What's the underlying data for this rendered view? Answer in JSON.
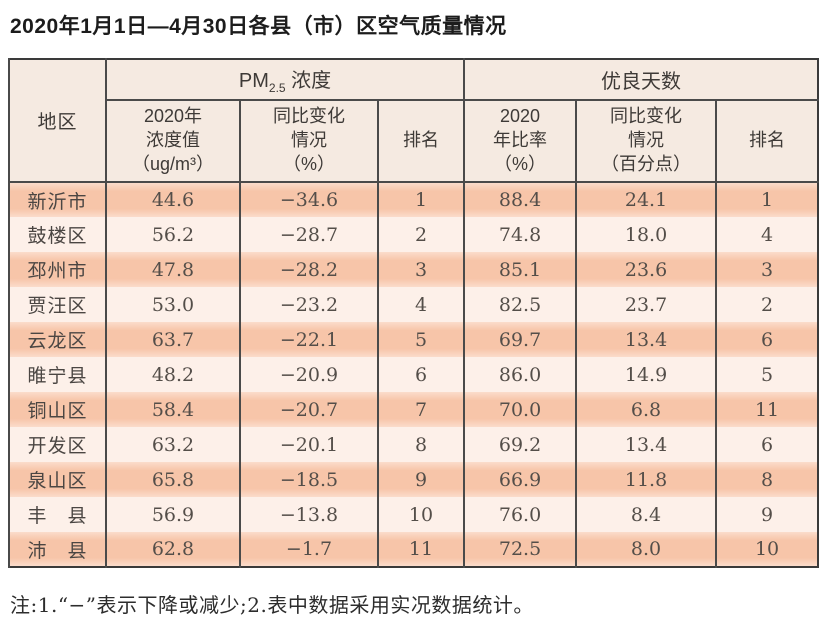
{
  "page": {
    "title": "2020年1月1日—4月30日各县（市）区空气质量情况",
    "note": "注:1.“−”表示下降或减少;2.表中数据采用实况数据统计。"
  },
  "colors": {
    "row_salmon": "#f7c5a9",
    "row_light": "#fdf0e9",
    "header_bg": "#f5eae1",
    "border_dark": "#4a4a4a"
  },
  "chart_data": {
    "type": "table",
    "title": "2020年1月1日—4月30日各县（市）区空气质量情况",
    "header": {
      "region": "地区",
      "group_pm": {
        "prefix": "PM",
        "sub": "2.5",
        "suffix": " 浓度"
      },
      "group_good": "优良天数",
      "sub_columns": [
        "2020年\n浓度值\n（ug/m³）",
        "同比变化\n情况\n（%）",
        "排名",
        "2020\n年比率\n（%）",
        "同比变化\n情况\n（百分点）",
        "排名"
      ]
    },
    "rows": [
      {
        "region": "新沂市",
        "pm_value": "44.6",
        "pm_change": "−34.6",
        "pm_rank": "1",
        "good_ratio": "88.4",
        "good_change": "24.1",
        "good_rank": "1"
      },
      {
        "region": "鼓楼区",
        "pm_value": "56.2",
        "pm_change": "−28.7",
        "pm_rank": "2",
        "good_ratio": "74.8",
        "good_change": "18.0",
        "good_rank": "4"
      },
      {
        "region": "邳州市",
        "pm_value": "47.8",
        "pm_change": "−28.2",
        "pm_rank": "3",
        "good_ratio": "85.1",
        "good_change": "23.6",
        "good_rank": "3"
      },
      {
        "region": "贾汪区",
        "pm_value": "53.0",
        "pm_change": "−23.2",
        "pm_rank": "4",
        "good_ratio": "82.5",
        "good_change": "23.7",
        "good_rank": "2"
      },
      {
        "region": "云龙区",
        "pm_value": "63.7",
        "pm_change": "−22.1",
        "pm_rank": "5",
        "good_ratio": "69.7",
        "good_change": "13.4",
        "good_rank": "6"
      },
      {
        "region": "睢宁县",
        "pm_value": "48.2",
        "pm_change": "−20.9",
        "pm_rank": "6",
        "good_ratio": "86.0",
        "good_change": "14.9",
        "good_rank": "5"
      },
      {
        "region": "铜山区",
        "pm_value": "58.4",
        "pm_change": "−20.7",
        "pm_rank": "7",
        "good_ratio": "70.0",
        "good_change": "6.8",
        "good_rank": "11"
      },
      {
        "region": "开发区",
        "pm_value": "63.2",
        "pm_change": "−20.1",
        "pm_rank": "8",
        "good_ratio": "69.2",
        "good_change": "13.4",
        "good_rank": "6"
      },
      {
        "region": "泉山区",
        "pm_value": "65.8",
        "pm_change": "−18.5",
        "pm_rank": "9",
        "good_ratio": "66.9",
        "good_change": "11.8",
        "good_rank": "8"
      },
      {
        "region": "丰　县",
        "pm_value": "56.9",
        "pm_change": "−13.8",
        "pm_rank": "10",
        "good_ratio": "76.0",
        "good_change": "8.4",
        "good_rank": "9"
      },
      {
        "region": "沛　县",
        "pm_value": "62.8",
        "pm_change": "−1.7",
        "pm_rank": "11",
        "good_ratio": "72.5",
        "good_change": "8.0",
        "good_rank": "10"
      }
    ]
  }
}
